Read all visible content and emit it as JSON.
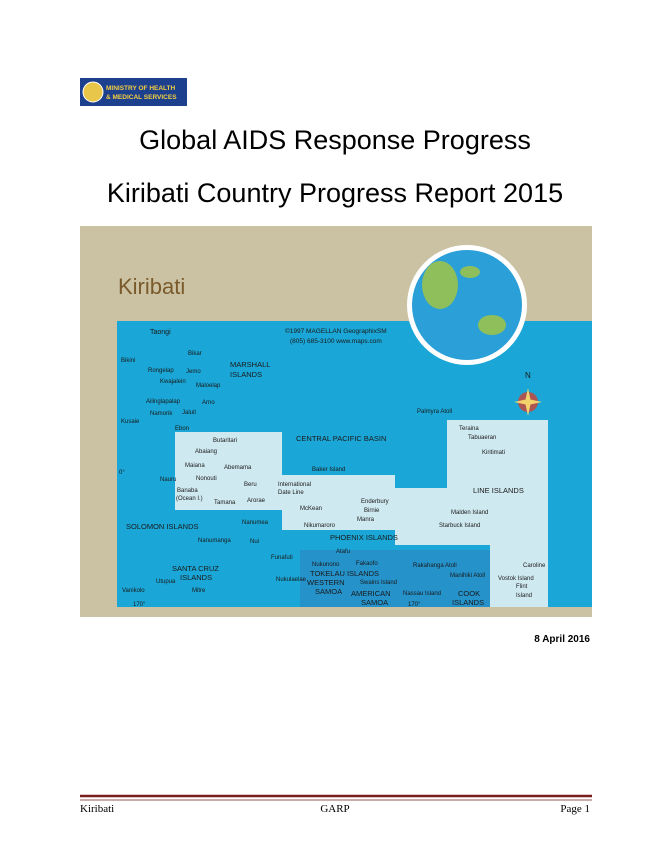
{
  "logo": {
    "lines": [
      "MINISTRY OF HEALTH",
      "& MEDICAL SERVICES"
    ]
  },
  "title": {
    "line1": "Global AIDS Response Progress",
    "line2": "Kiribati Country Progress Report 2015"
  },
  "map": {
    "title": "Kiribati",
    "labels": [
      "Taongi",
      "Bikar",
      "Bikini",
      "Rongelap",
      "Jemo",
      "MARSHALL",
      "ISLANDS",
      "©1997 MAGELLAN GeographixSM",
      "(805) 685-3100  www.maps.com",
      "Kwajalein",
      "Maloelap",
      "Ailinglapalap",
      "Arno",
      "Namorik",
      "Jaluit",
      "Kusaie",
      "Ebon",
      "Butaritari",
      "CENTRAL PACIFIC BASIN",
      "Abaiang",
      "Maiana",
      "Abemama",
      "Baker Island",
      "Nauru",
      "Nonouti",
      "Beru",
      "International",
      "Date Line",
      "Banaba",
      "(Ocean I.)",
      "Tamana",
      "Arorae",
      "Palmyra Atoll",
      "Teraina",
      "Tabuaeran",
      "Kiritimati",
      "LINE ISLANDS",
      "Malden Island",
      "Starbuck Island",
      "Enderbury",
      "Birnie",
      "Manra",
      "McKean",
      "Nikumaroro",
      "SOLOMON ISLANDS",
      "Nanumea",
      "Nanumanga",
      "Nui",
      "PHOENIX ISLANDS",
      "Atafu",
      "Funafuti",
      "Nukunono",
      "Fakaofo",
      "TOKELAU ISLANDS",
      "Rakahanga Atoll",
      "Manihiki Atoll",
      "SANTA CRUZ",
      "ISLANDS",
      "Caroline",
      "Vostok Island",
      "Utupua",
      "Nukulaelae",
      "WESTERN",
      "SAMOA",
      "Swains Island",
      "Flint",
      "Island",
      "Vanikolo",
      "Mitre",
      "AMERICAN",
      "SAMOA",
      "Nassau Island",
      "COOK",
      "ISLANDS",
      "170°",
      "170°",
      "0°",
      "N"
    ]
  },
  "date": "8 April 2016",
  "footer": {
    "left": "Kiribati",
    "center": "GARP",
    "right": "Page 1"
  }
}
